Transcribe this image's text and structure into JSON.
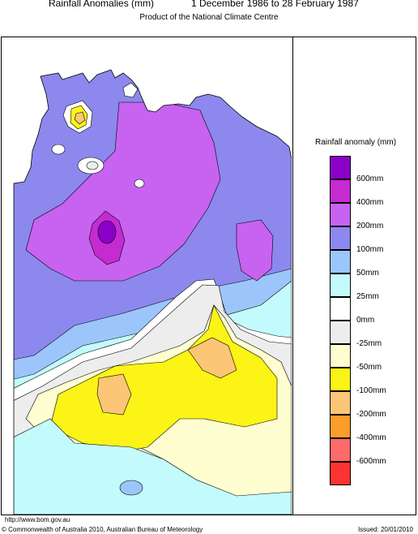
{
  "header": {
    "title": "Rainfall Anomalies (mm)",
    "period": "1 December 1986 to 28 February 1987",
    "subtitle": "Product of the National Climate Centre"
  },
  "legend": {
    "title": "Rainfall anomaly (mm)",
    "items": [
      {
        "label": "600mm",
        "color": "#8b00c8"
      },
      {
        "label": "400mm",
        "color": "#c42bd1"
      },
      {
        "label": "200mm",
        "color": "#c763f0"
      },
      {
        "label": "100mm",
        "color": "#8c88ee"
      },
      {
        "label": "50mm",
        "color": "#9cc6fb"
      },
      {
        "label": "25mm",
        "color": "#c3fbfc"
      },
      {
        "label": "0mm",
        "color": "#ffffff"
      },
      {
        "label": "-25mm",
        "color": "#ededed"
      },
      {
        "label": "-50mm",
        "color": "#fefed0"
      },
      {
        "label": "-100mm",
        "color": "#fbf416"
      },
      {
        "label": "-200mm",
        "color": "#fbc676"
      },
      {
        "label": "-400mm",
        "color": "#fb9d2b"
      },
      {
        "label": "-600mm",
        "color": "#fd6a6a"
      },
      {
        "label": "",
        "color": "#fd3333"
      }
    ]
  },
  "footer": {
    "url": "http://www.bom.gov.au",
    "copyright": "© Commonwealth of Australia 2010, Australian Bureau of Meteorology",
    "issued": "Issued: 20/01/2010"
  }
}
